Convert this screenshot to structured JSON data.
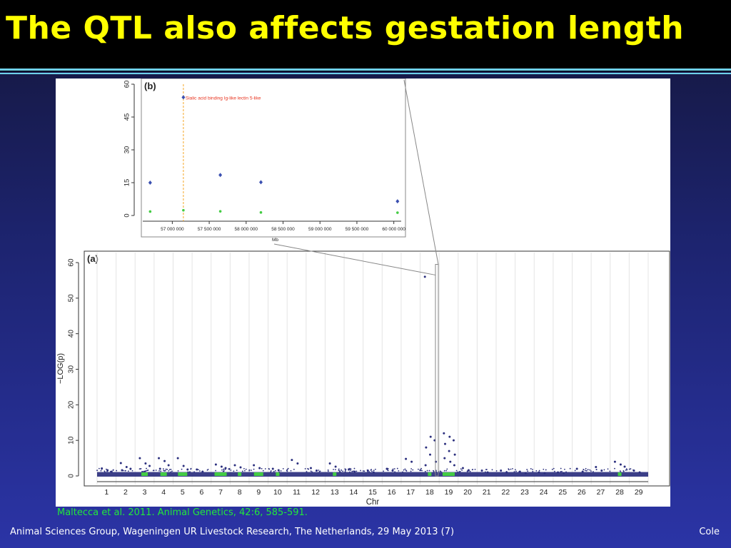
{
  "slide": {
    "title": "The QTL also affects gestation length",
    "citation": "Maltecca et al. 2011. Animal Genetics, 42:6, 585-591.",
    "footer": "Animal Sciences Group, Wageningen UR Livestock Research, The Netherlands, 29 May 2013 (7)",
    "author": "Cole"
  },
  "colors": {
    "title": "#ffff00",
    "citation": "#22e83a",
    "rule": "#6ed0ea",
    "series_a": "#2b2f7e",
    "series_b": "#44cc44",
    "gene_point": "#3a4fb0",
    "gene_label": "#e8331e",
    "vline": "#f5a623"
  },
  "chart_data": [
    {
      "panel": "(a)",
      "type": "scatter",
      "xlabel": "Chr",
      "ylabel": "−LOG(p)",
      "ylim": [
        0,
        60
      ],
      "yticks": [
        0,
        10,
        20,
        30,
        40,
        50,
        60
      ],
      "categories": [
        "1",
        "2",
        "3",
        "4",
        "5",
        "6",
        "7",
        "8",
        "9",
        "10",
        "11",
        "12",
        "13",
        "14",
        "15",
        "16",
        "17",
        "18",
        "19",
        "20",
        "21",
        "22",
        "23",
        "24",
        "25",
        "26",
        "27",
        "28",
        "29"
      ],
      "grid": "vertical",
      "series": [
        {
          "values_by_chr": {
            "1": [
              2.1,
              1.6,
              1.2
            ],
            "2": [
              3.6,
              2.5,
              2.0,
              1.6
            ],
            "3": [
              5.0,
              3.5,
              2.8
            ],
            "4": [
              5.0,
              4.2,
              3.0,
              2.0
            ],
            "5": [
              5.0,
              2.8,
              1.8
            ],
            "6": [
              1.8,
              1.2
            ],
            "7": [
              3.2,
              2.6,
              2.2
            ],
            "8": [
              3.0,
              2.4
            ],
            "9": [
              3.0,
              2.2
            ],
            "10": [
              2.0,
              1.6
            ],
            "11": [
              4.5,
              3.5
            ],
            "12": [
              2.2,
              1.5
            ],
            "13": [
              3.5,
              2.6
            ],
            "14": [
              1.8,
              1.2
            ],
            "15": [
              1.5,
              1.0
            ],
            "16": [
              2.0,
              1.5
            ],
            "17": [
              4.8,
              4.0
            ],
            "18": [
              56.0,
              11.0,
              10.0,
              8.0,
              6.0,
              4.0,
              3.0
            ],
            "19": [
              12.0,
              11.0,
              10.0,
              9.0,
              7.0,
              6.0,
              5.0,
              4.0,
              3.0
            ],
            "20": [
              2.2,
              1.6
            ],
            "21": [
              1.5,
              1.0
            ],
            "22": [
              1.5,
              1.0
            ],
            "23": [
              1.2,
              0.8
            ],
            "24": [
              1.0,
              0.8
            ],
            "25": [
              1.0,
              0.8
            ],
            "26": [
              2.0,
              1.2
            ],
            "27": [
              2.5,
              1.5
            ],
            "28": [
              4.0,
              3.2,
              2.6
            ],
            "29": [
              1.5,
              1.0
            ]
          }
        },
        {
          "values_by_chr": {
            "1": [],
            "2": [],
            "3": [
              0.5,
              0.5
            ],
            "4": [
              0.5,
              0.5
            ],
            "5": [
              0.5,
              0.5,
              0.5
            ],
            "6": [],
            "7": [
              0.5,
              0.5,
              0.5,
              0.5
            ],
            "8": [
              0.5
            ],
            "9": [
              0.5,
              0.5,
              0.5
            ],
            "10": [
              0.5
            ],
            "11": [],
            "12": [],
            "13": [
              0.5
            ],
            "14": [],
            "15": [],
            "16": [],
            "17": [],
            "18": [
              0.5
            ],
            "19": [
              0.5,
              0.5,
              0.5,
              0.5
            ],
            "20": [],
            "21": [],
            "22": [],
            "23": [],
            "24": [],
            "25": [],
            "26": [],
            "27": [],
            "28": [
              0.5
            ],
            "29": []
          }
        }
      ]
    },
    {
      "panel": "(b)",
      "type": "scatter",
      "xlabel": "Mb",
      "ylabel": "",
      "ylim": [
        0,
        60
      ],
      "yticks": [
        0,
        15,
        30,
        45,
        60
      ],
      "xlim": [
        56600000,
        60100000
      ],
      "xticks": [
        "57 000 000",
        "57 500 000",
        "58 000 000",
        "58 500 000",
        "59 000 000",
        "59 500 000",
        "60 000 000"
      ],
      "xtick_values": [
        57000000,
        57500000,
        58000000,
        58500000,
        59000000,
        59500000,
        60000000
      ],
      "annotation": "Sialic acid binding Ig-like lectin 5-like",
      "highlight_x": 57150000,
      "series": [
        {
          "x": [
            56700000,
            57150000,
            57650000,
            58200000,
            60050000
          ],
          "y": [
            15,
            54,
            18.5,
            15.2,
            6.5
          ]
        },
        {
          "x": [
            56700000,
            57150000,
            57650000,
            58200000,
            60050000
          ],
          "y": [
            1.8,
            2.4,
            1.9,
            1.4,
            1.3
          ]
        }
      ]
    }
  ]
}
